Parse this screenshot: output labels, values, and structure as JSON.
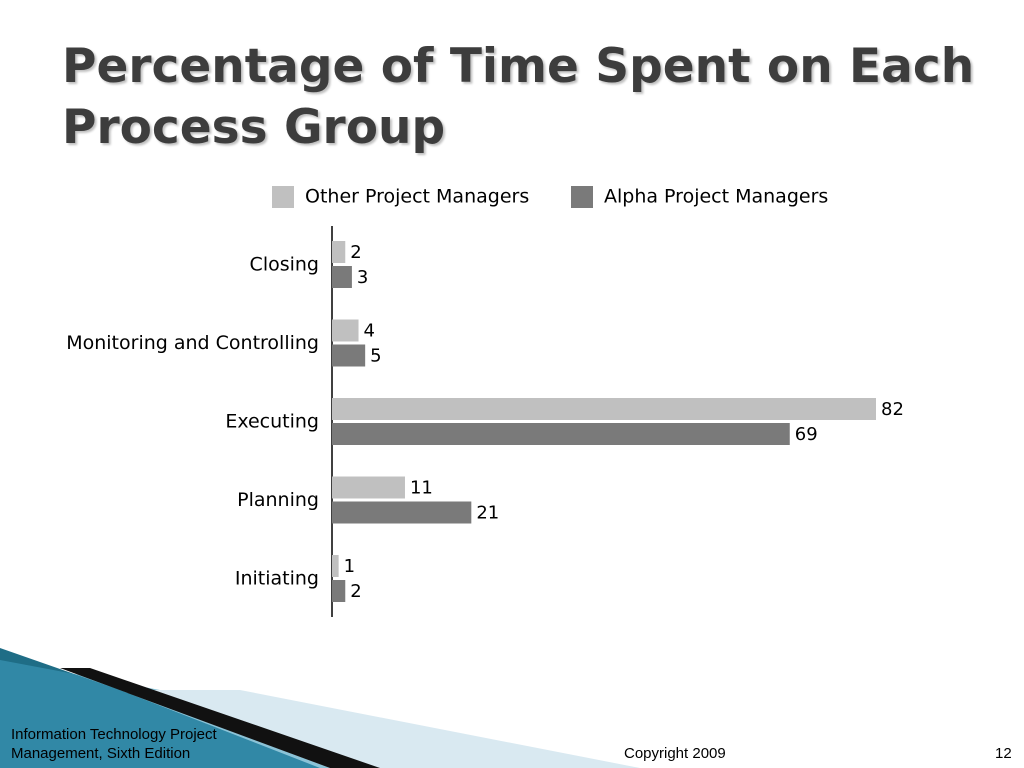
{
  "slide": {
    "title": "Percentage of Time Spent on Each Process Group",
    "footer_left": "Information Technology Project Management, Sixth Edition",
    "copyright": "Copyright 2009",
    "page_number": "12"
  },
  "colors": {
    "other": "#c0c0c0",
    "alpha": "#7a7a7a",
    "axis": "#000000",
    "decor_dark": "#1f6d86",
    "decor_light": "#d9e9f1"
  },
  "chart_data": {
    "type": "bar",
    "orientation": "horizontal",
    "categories": [
      "Closing",
      "Monitoring and Controlling",
      "Executing",
      "Planning",
      "Initiating"
    ],
    "series": [
      {
        "name": "Other Project Managers",
        "values": [
          2,
          4,
          82,
          11,
          1
        ]
      },
      {
        "name": "Alpha Project Managers",
        "values": [
          3,
          5,
          69,
          21,
          2
        ]
      }
    ],
    "value_labels": true,
    "xlim": [
      0,
      82
    ],
    "grid": false,
    "legend_position": "top"
  }
}
